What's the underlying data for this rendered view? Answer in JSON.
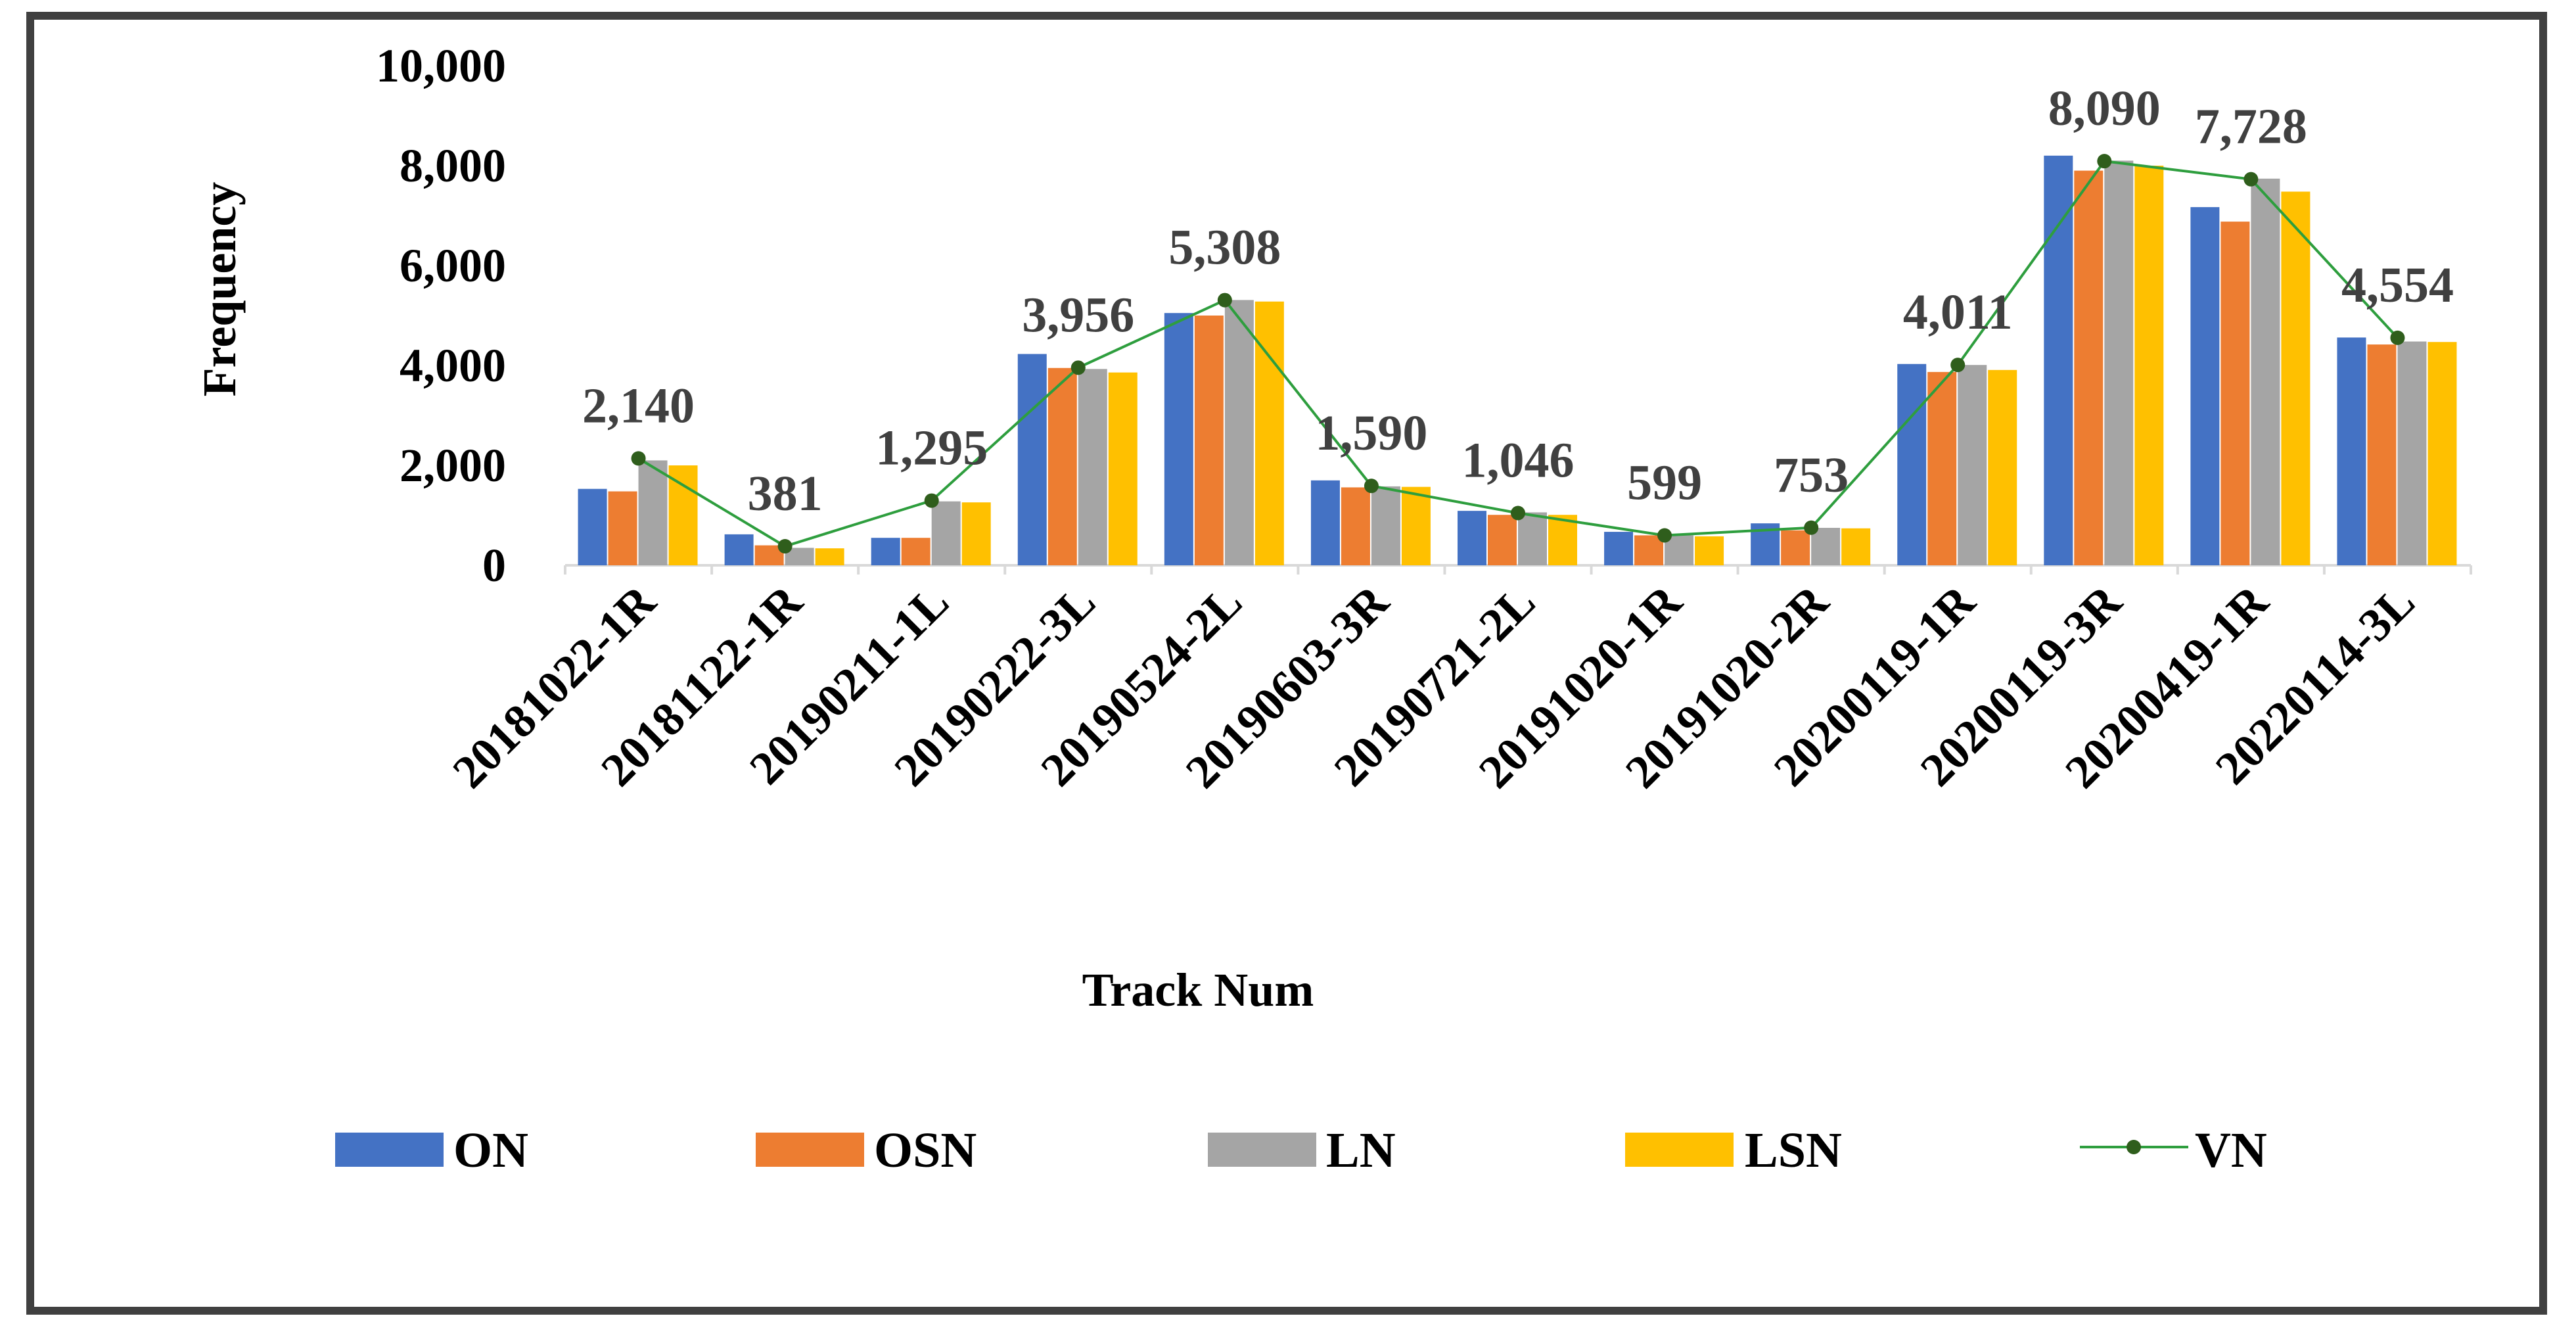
{
  "chart_data": {
    "type": "bar",
    "title": "",
    "xlabel": "Track Num",
    "ylabel": "Frequency",
    "ylim": [
      0,
      10000
    ],
    "yticks": [
      0,
      2000,
      4000,
      6000,
      8000,
      10000
    ],
    "ytick_labels": [
      "0",
      "2,000",
      "4,000",
      "6,000",
      "8,000",
      "10,000"
    ],
    "categories": [
      "20181022-1R",
      "20181122-1R",
      "20190211-1L",
      "20190222-3L",
      "20190524-2L",
      "20190603-3R",
      "20190721-2L",
      "20191020-1R",
      "20191020-2R",
      "20200119-1R",
      "20200119-3R",
      "20200419-1R",
      "20220114-3L"
    ],
    "series": [
      {
        "name": "ON",
        "kind": "bar",
        "color": "#4472C4",
        "values": [
          1530,
          620,
          550,
          4230,
          5050,
          1700,
          1090,
          670,
          840,
          4030,
          8200,
          7170,
          4560
        ]
      },
      {
        "name": "OSN",
        "kind": "bar",
        "color": "#ED7D31",
        "values": [
          1480,
          400,
          550,
          3950,
          5000,
          1560,
          1010,
          600,
          700,
          3870,
          7900,
          6880,
          4420
        ]
      },
      {
        "name": "LN",
        "kind": "bar",
        "color": "#A5A5A5",
        "values": [
          2100,
          350,
          1280,
          3930,
          5310,
          1580,
          1060,
          600,
          750,
          4010,
          8100,
          7740,
          4480
        ]
      },
      {
        "name": "LSN",
        "kind": "bar",
        "color": "#FFC000",
        "values": [
          2000,
          340,
          1260,
          3860,
          5280,
          1570,
          1010,
          580,
          740,
          3910,
          8000,
          7480,
          4470
        ]
      },
      {
        "name": "VN",
        "kind": "line",
        "color": "#2E9E3E",
        "marker_color": "#2F5E1C",
        "values": [
          2140,
          381,
          1295,
          3956,
          5308,
          1590,
          1046,
          599,
          753,
          4011,
          8090,
          7728,
          4554
        ]
      }
    ],
    "data_labels": [
      "2,140",
      "381",
      "1,295",
      "3,956",
      "5,308",
      "1,590",
      "1,046",
      "599",
      "753",
      "4,011",
      "8,090",
      "7,728",
      "4,554"
    ],
    "legend_position": "bottom"
  }
}
